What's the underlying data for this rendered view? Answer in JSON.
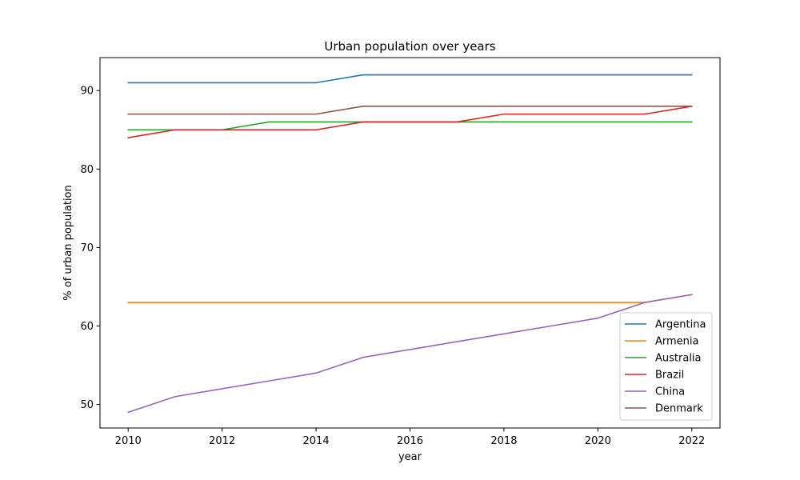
{
  "chart_data": {
    "type": "line",
    "title": "Urban population over years",
    "xlabel": "year",
    "ylabel": "% of urban population",
    "x": [
      2010,
      2011,
      2012,
      2013,
      2014,
      2015,
      2016,
      2017,
      2018,
      2019,
      2020,
      2021,
      2022
    ],
    "xlim": [
      2009.4,
      2022.6
    ],
    "ylim": [
      47.0,
      94.2
    ],
    "xticks": [
      2010,
      2012,
      2014,
      2016,
      2018,
      2020,
      2022
    ],
    "yticks": [
      50,
      60,
      70,
      80,
      90
    ],
    "grid": false,
    "legend_position": "lower-right",
    "series": [
      {
        "name": "Argentina",
        "color": "#1f77b4",
        "values": [
          91,
          91,
          91,
          91,
          91,
          92,
          92,
          92,
          92,
          92,
          92,
          92,
          92
        ]
      },
      {
        "name": "Armenia",
        "color": "#ff7f0e",
        "values": [
          63,
          63,
          63,
          63,
          63,
          63,
          63,
          63,
          63,
          63,
          63,
          63,
          64
        ]
      },
      {
        "name": "Australia",
        "color": "#2ca02c",
        "values": [
          85,
          85,
          85,
          86,
          86,
          86,
          86,
          86,
          86,
          86,
          86,
          86,
          86
        ]
      },
      {
        "name": "Brazil",
        "color": "#d62728",
        "values": [
          84,
          85,
          85,
          85,
          85,
          86,
          86,
          86,
          87,
          87,
          87,
          87,
          88
        ]
      },
      {
        "name": "China",
        "color": "#9467bd",
        "values": [
          49,
          51,
          52,
          53,
          54,
          56,
          57,
          58,
          59,
          60,
          61,
          63,
          64
        ]
      },
      {
        "name": "Denmark",
        "color": "#8c564b",
        "values": [
          87,
          87,
          87,
          87,
          87,
          88,
          88,
          88,
          88,
          88,
          88,
          88,
          88
        ]
      }
    ]
  }
}
